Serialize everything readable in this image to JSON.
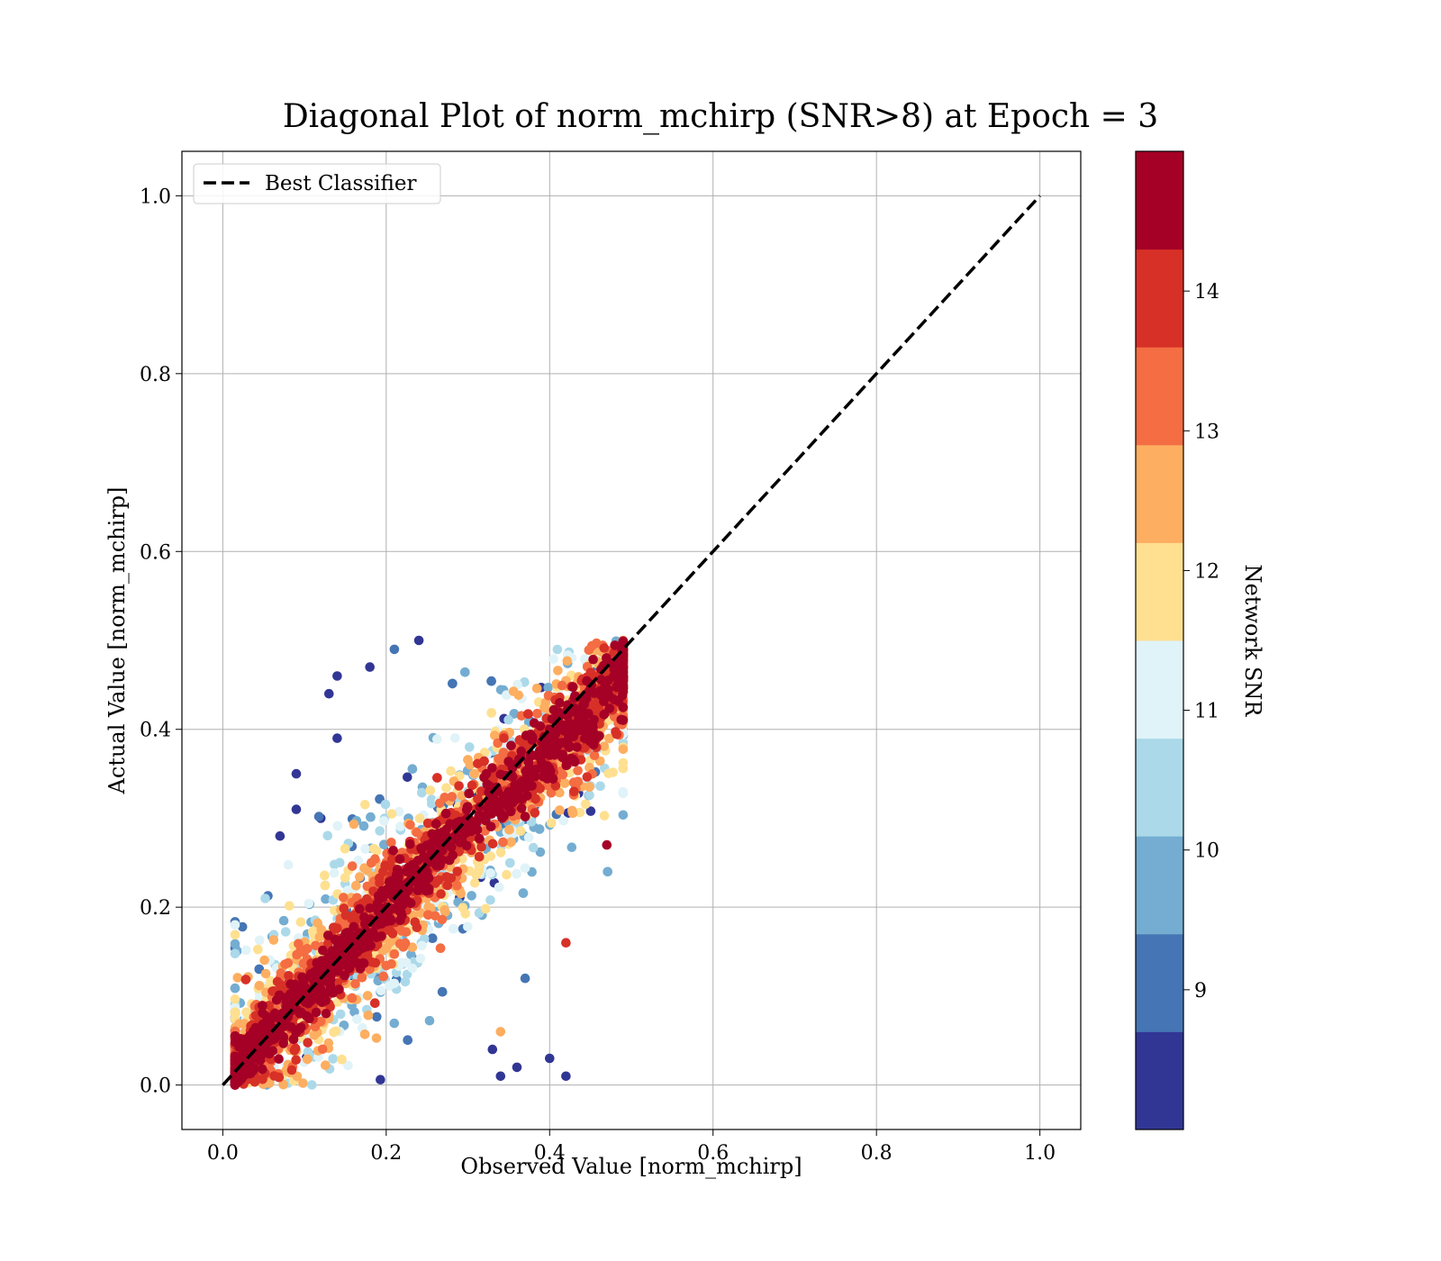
{
  "chart_data": {
    "type": "scatter",
    "title": "Diagonal Plot of norm_mchirp (SNR>8) at Epoch = 3",
    "xlabel": "Observed Value [norm_mchirp]",
    "ylabel": "Actual Value [norm_mchirp]",
    "xlim": [
      -0.05,
      1.05
    ],
    "ylim": [
      -0.05,
      1.05
    ],
    "xticks": [
      "0.0",
      "0.2",
      "0.4",
      "0.6",
      "0.8",
      "1.0"
    ],
    "yticks": [
      "0.0",
      "0.2",
      "0.4",
      "0.6",
      "0.8",
      "1.0"
    ],
    "grid": true,
    "legend": {
      "placement": "top-left",
      "entries": [
        "Best Classifier"
      ]
    },
    "reference_line": {
      "name": "Best Classifier",
      "style": "dashed",
      "color": "#000000",
      "x": [
        0.0,
        1.0
      ],
      "y": [
        0.0,
        1.0
      ]
    },
    "colorbar": {
      "label": "Network SNR",
      "range": [
        8,
        15
      ],
      "ticks": [
        "9",
        "10",
        "11",
        "12",
        "13",
        "14"
      ],
      "colors": [
        "#313695",
        "#4575b4",
        "#74add1",
        "#abd9e9",
        "#e0f3f8",
        "#fee090",
        "#fdae61",
        "#f46d43",
        "#d73027",
        "#a50026"
      ]
    },
    "series": [
      {
        "points_sample": [
          {
            "x": 0.07,
            "y": 0.28,
            "snr": 8.2
          },
          {
            "x": 0.09,
            "y": 0.35,
            "snr": 8.3
          },
          {
            "x": 0.13,
            "y": 0.44,
            "snr": 8.1
          },
          {
            "x": 0.14,
            "y": 0.46,
            "snr": 8.4
          },
          {
            "x": 0.18,
            "y": 0.47,
            "snr": 8.2
          },
          {
            "x": 0.21,
            "y": 0.49,
            "snr": 9.0
          },
          {
            "x": 0.24,
            "y": 0.5,
            "snr": 8.5
          },
          {
            "x": 0.14,
            "y": 0.39,
            "snr": 8.2
          },
          {
            "x": 0.12,
            "y": 0.3,
            "snr": 8.3
          },
          {
            "x": 0.09,
            "y": 0.31,
            "snr": 8.2
          },
          {
            "x": 0.36,
            "y": 0.02,
            "snr": 8.2
          },
          {
            "x": 0.4,
            "y": 0.03,
            "snr": 8.3
          },
          {
            "x": 0.42,
            "y": 0.01,
            "snr": 8.2
          },
          {
            "x": 0.34,
            "y": 0.01,
            "snr": 8.4
          },
          {
            "x": 0.33,
            "y": 0.04,
            "snr": 8.1
          },
          {
            "x": 0.37,
            "y": 0.12,
            "snr": 9.0
          },
          {
            "x": 0.34,
            "y": 0.06,
            "snr": 12.5
          },
          {
            "x": 0.42,
            "y": 0.16,
            "snr": 14.0
          },
          {
            "x": 0.49,
            "y": 0.49,
            "snr": 14.8
          },
          {
            "x": 0.47,
            "y": 0.27,
            "snr": 14.5
          },
          {
            "x": 0.05,
            "y": 0.05,
            "snr": 14.9
          },
          {
            "x": 0.2,
            "y": 0.2,
            "snr": 14.9
          },
          {
            "x": 0.3,
            "y": 0.3,
            "snr": 14.9
          },
          {
            "x": 0.4,
            "y": 0.4,
            "snr": 14.9
          }
        ]
      }
    ]
  }
}
